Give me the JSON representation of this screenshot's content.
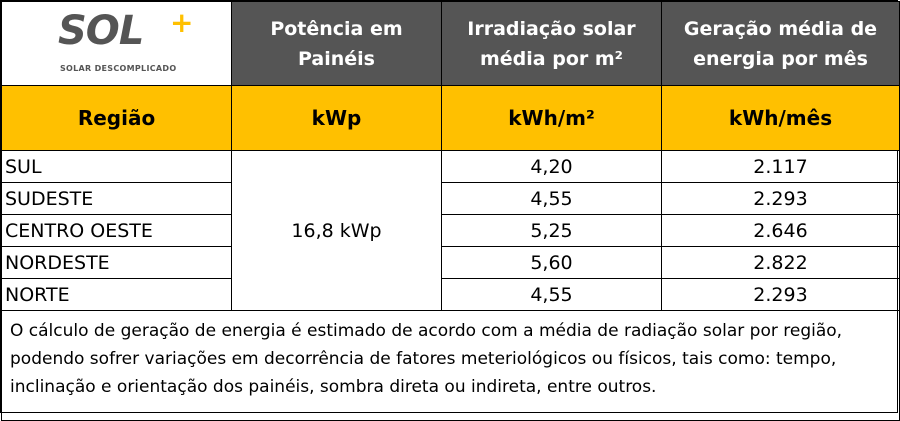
{
  "logo": {
    "wordmark": "SOL",
    "plus": "+",
    "tagline": "SOLAR DESCOMPLICADO"
  },
  "header": {
    "col2": "Potência em Painéis",
    "col3": "Irradiação solar média por m²",
    "col4": "Geração média de energia por mês"
  },
  "units": {
    "col1": "Região",
    "col2": "kWp",
    "col3": "kWh/m²",
    "col4": "kWh/mês"
  },
  "power": "16,8 kWp",
  "rows": [
    {
      "region": "SUL",
      "irradiation": "4,20",
      "generation": "2.117"
    },
    {
      "region": "SUDESTE",
      "irradiation": "4,55",
      "generation": "2.293"
    },
    {
      "region": "CENTRO OESTE",
      "irradiation": "5,25",
      "generation": "2.646"
    },
    {
      "region": "NORDESTE",
      "irradiation": "5,60",
      "generation": "2.822"
    },
    {
      "region": "NORTE",
      "irradiation": "4,55",
      "generation": "2.293"
    }
  ],
  "note": "O cálculo de geração de energia é estimado de acordo com a média de radiação solar por região, podendo sofrer variações em decorrência de fatores meteriológicos ou físicos, tais como: tempo, inclinação e orientação dos painéis, sombra direta ou indireta, entre outros.",
  "colors": {
    "header_dark": "#555555",
    "accent_yellow": "#ffc000"
  }
}
